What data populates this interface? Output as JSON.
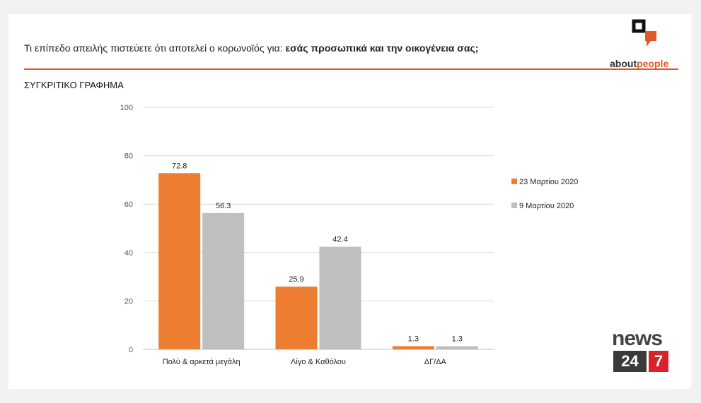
{
  "question": {
    "prefix": "Τι επίπεδο απειλής πιστεύετε ότι αποτελεί ο κορωνοϊός για: ",
    "emphasis": "εσάς προσωπικά και την οικογένεια σας;"
  },
  "subtitle": "ΣΥΓΚΡΙΤΙΚΟ ΓΡΑΦΗΜΑ",
  "logos": {
    "aboutpeople_dark": "about",
    "aboutpeople_accent": "people",
    "news_word": "news",
    "news_num": "24",
    "news_seven": "7"
  },
  "colors": {
    "accent": "#e2582b",
    "series1": "#ed7d31",
    "series2": "#bfbfbf"
  },
  "chart_data": {
    "type": "bar",
    "categories": [
      "Πολύ & αρκετά μεγάλη",
      "Λίγο & Καθόλου",
      "ΔΓ/ΔΑ"
    ],
    "series": [
      {
        "name": "23 Μαρτίου 2020",
        "values": [
          72.8,
          25.9,
          1.3
        ]
      },
      {
        "name": "9 Μαρτίου 2020",
        "values": [
          56.3,
          42.4,
          1.3
        ]
      }
    ],
    "ylim": [
      0,
      100
    ],
    "yticks": [
      0,
      20,
      40,
      60,
      80,
      100
    ],
    "grid": true,
    "legend": "right",
    "data_labels": true
  }
}
